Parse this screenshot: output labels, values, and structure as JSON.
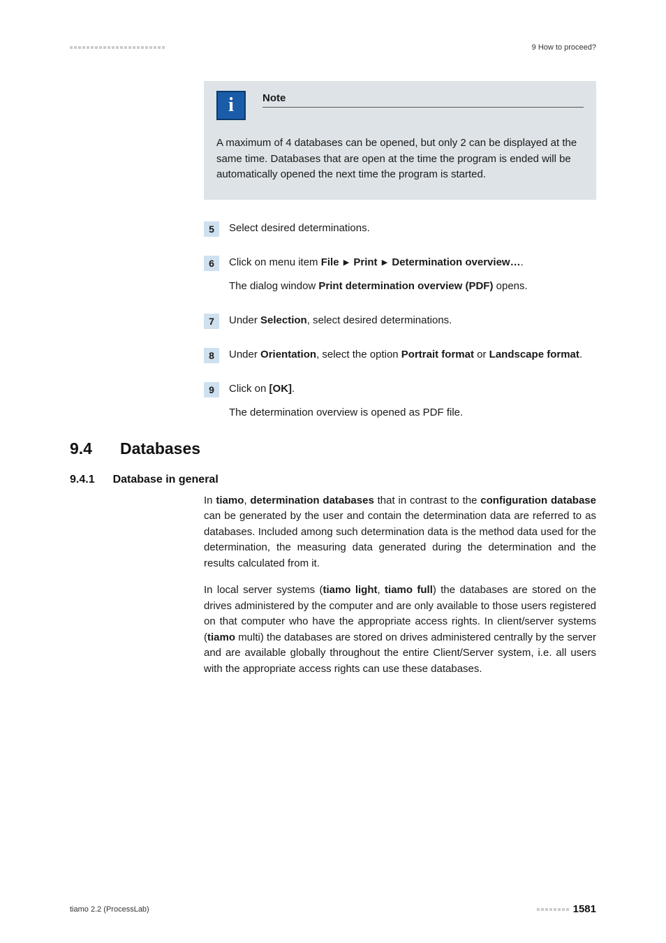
{
  "header": {
    "right_text": "9 How to proceed?",
    "dot_count": 23,
    "dot_color": "#cccccc"
  },
  "note": {
    "title": "Note",
    "body": "A maximum of 4 databases can be opened, but only 2 can be displayed at the same time. Databases that are open at the time the program is ended will be automatically opened the next time the program is started.",
    "box_bg": "#dde3e6",
    "icon_bg": "#1a5ca8",
    "icon_border": "#0d3a6e"
  },
  "steps": {
    "num_bg": "#cfe0ef",
    "triangle": "▶",
    "items": [
      {
        "num": "5",
        "lines": [
          "Select desired determinations."
        ]
      },
      {
        "num": "6",
        "menu_prefix": "Click on menu item ",
        "menu_path": [
          "File",
          "Print",
          "Determination overview…"
        ],
        "menu_suffix": ".",
        "result_prefix": "The dialog window ",
        "result_bold": "Print determination overview (PDF)",
        "result_suffix": " opens."
      },
      {
        "num": "7",
        "prefix": "Under ",
        "bold1": "Selection",
        "suffix": ", select desired determinations."
      },
      {
        "num": "8",
        "prefix": "Under ",
        "bold1": "Orientation",
        "mid1": ", select the option ",
        "bold2": "Portrait format",
        "mid2": " or ",
        "bold3": "Landscape format",
        "suffix": "."
      },
      {
        "num": "9",
        "prefix": "Click on ",
        "bold1": "[OK]",
        "suffix": ".",
        "result": "The determination overview is opened as PDF file."
      }
    ]
  },
  "section": {
    "num": "9.4",
    "title": "Databases"
  },
  "subsection": {
    "num": "9.4.1",
    "title": "Database in general"
  },
  "para1": {
    "t1": "In ",
    "b1": "tiamo",
    "t2": ", ",
    "b2": "determination databases",
    "t3": " that in contrast to the ",
    "b3": "configuration database",
    "t4": " can be generated by the user and contain the determination data are referred to as databases. Included among such determination data is the method data used for the determination, the measuring data generated during the determination and the results calculated from it."
  },
  "para2": {
    "t1": "In local server systems (",
    "b1": "tiamo light",
    "t2": ", ",
    "b2": "tiamo full",
    "t3": ") the databases are stored on the drives administered by the computer and are only available to those users registered on that computer who have the appropriate access rights. In client/server systems (",
    "b3": "tiamo",
    "t4": " multi) the databases are stored on drives administered centrally by the server and are available globally throughout the entire Client/Server system, i.e. all users with the appropriate access rights can use these databases."
  },
  "footer": {
    "left": "tiamo 2.2 (ProcessLab)",
    "dot_count": 8,
    "dot_color": "#cccccc",
    "pagenum": "1581"
  },
  "colors": {
    "body_text": "#1a1a1a",
    "background": "#ffffff"
  },
  "typography": {
    "body_fontsize_pt": 11,
    "heading_fontsize_pt": 17,
    "subheading_fontsize_pt": 12
  }
}
